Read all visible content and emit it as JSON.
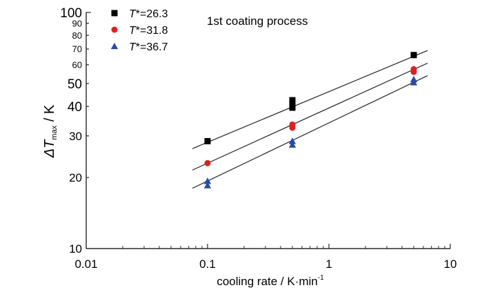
{
  "chart_data": {
    "type": "scatter",
    "title": "1st coating process",
    "xlabel": "cooling rate / K·min",
    "xlabel_sup": "-1",
    "ylabel_main": "ΔT",
    "ylabel_sub": "max",
    "ylabel_unit": " / K",
    "xscale": "log",
    "yscale": "log",
    "xlim": [
      0.01,
      10
    ],
    "ylim": [
      10,
      100
    ],
    "grid": false,
    "legend_position": "top-left",
    "x_ticks": [
      {
        "value": 0.01,
        "label": "0.01"
      },
      {
        "value": 0.1,
        "label": "0.1"
      },
      {
        "value": 1,
        "label": "1"
      },
      {
        "value": 10,
        "label": "10"
      }
    ],
    "y_ticks": [
      {
        "value": 10,
        "label": "10"
      },
      {
        "value": 20,
        "label": "20"
      },
      {
        "value": 30,
        "label": "30"
      },
      {
        "value": 40,
        "label": "40"
      },
      {
        "value": 50,
        "label": "50"
      },
      {
        "value": 60,
        "label": "60"
      },
      {
        "value": 70,
        "label": "70"
      },
      {
        "value": 80,
        "label": "80"
      },
      {
        "value": 90,
        "label": "90"
      },
      {
        "value": 100,
        "label": "100"
      }
    ],
    "series": [
      {
        "name_italic": "T",
        "name_rest": "*=26.3",
        "marker": "square",
        "color": "#000000",
        "points": [
          {
            "x": 0.1,
            "y": 28.5
          },
          {
            "x": 0.5,
            "y": 39.5
          },
          {
            "x": 0.5,
            "y": 41
          },
          {
            "x": 0.5,
            "y": 42.5
          },
          {
            "x": 5,
            "y": 66
          }
        ],
        "fit": {
          "x": [
            0.075,
            6.5
          ],
          "y": [
            26.5,
            69
          ]
        }
      },
      {
        "name_italic": "T",
        "name_rest": "*=31.8",
        "marker": "circle",
        "color": "#e02020",
        "points": [
          {
            "x": 0.1,
            "y": 23
          },
          {
            "x": 0.5,
            "y": 32.5
          },
          {
            "x": 0.5,
            "y": 33.5
          },
          {
            "x": 5,
            "y": 56
          },
          {
            "x": 5,
            "y": 57.5
          }
        ],
        "fit": {
          "x": [
            0.075,
            6.5
          ],
          "y": [
            21.5,
            61
          ]
        }
      },
      {
        "name_italic": "T",
        "name_rest": "*=36.7",
        "marker": "triangle",
        "color": "#2a4aa8",
        "points": [
          {
            "x": 0.1,
            "y": 18.5
          },
          {
            "x": 0.1,
            "y": 19.3
          },
          {
            "x": 0.5,
            "y": 27.5
          },
          {
            "x": 0.5,
            "y": 28.5
          },
          {
            "x": 5,
            "y": 50.5
          },
          {
            "x": 5,
            "y": 52
          }
        ],
        "fit": {
          "x": [
            0.075,
            6.5
          ],
          "y": [
            18,
            54
          ]
        }
      }
    ]
  }
}
